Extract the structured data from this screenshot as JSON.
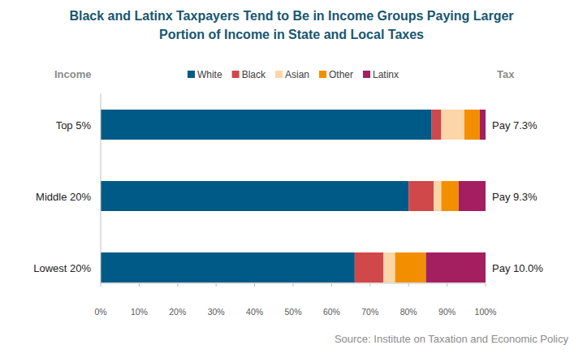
{
  "chart_data": {
    "type": "bar",
    "orientation": "horizontal",
    "stacked": true,
    "title": "Black and Latinx Taxpayers Tend to Be in Income Groups Paying Larger Portion of Income in State and Local Taxes",
    "ylabel": "Income",
    "right_label": "Tax",
    "right_values": [
      "Pay 7.3%",
      "Pay 9.3%",
      "Pay 10.0%"
    ],
    "source": "Source: Institute on Taxation and Economic Policy",
    "categories": [
      "Top 5%",
      "Middle 20%",
      "Lowest 20%"
    ],
    "series": [
      {
        "name": "White",
        "color": "#005a87",
        "values": [
          86,
          80,
          66
        ]
      },
      {
        "name": "Black",
        "color": "#d0484a",
        "values": [
          2.5,
          6.5,
          7.5
        ]
      },
      {
        "name": "Asian",
        "color": "#fcd6a8",
        "values": [
          6,
          2,
          3
        ]
      },
      {
        "name": "Other",
        "color": "#f28f00",
        "values": [
          4,
          4.5,
          8
        ]
      },
      {
        "name": "Latinx",
        "color": "#a41f5f",
        "values": [
          1.5,
          7,
          15.5
        ]
      }
    ],
    "xlim": [
      0,
      100
    ],
    "xticks": [
      {
        "value": 0,
        "label": "0%"
      },
      {
        "value": 10,
        "label": "10%"
      },
      {
        "value": 20,
        "label": "20%"
      },
      {
        "value": 30,
        "label": "30%"
      },
      {
        "value": 40,
        "label": "40%"
      },
      {
        "value": 50,
        "label": "50%"
      },
      {
        "value": 60,
        "label": "60%"
      },
      {
        "value": 70,
        "label": "70%"
      },
      {
        "value": 80,
        "label": "80%"
      },
      {
        "value": 90,
        "label": "90%"
      },
      {
        "value": 100,
        "label": "100%"
      }
    ],
    "legend": "top",
    "grid": false
  }
}
